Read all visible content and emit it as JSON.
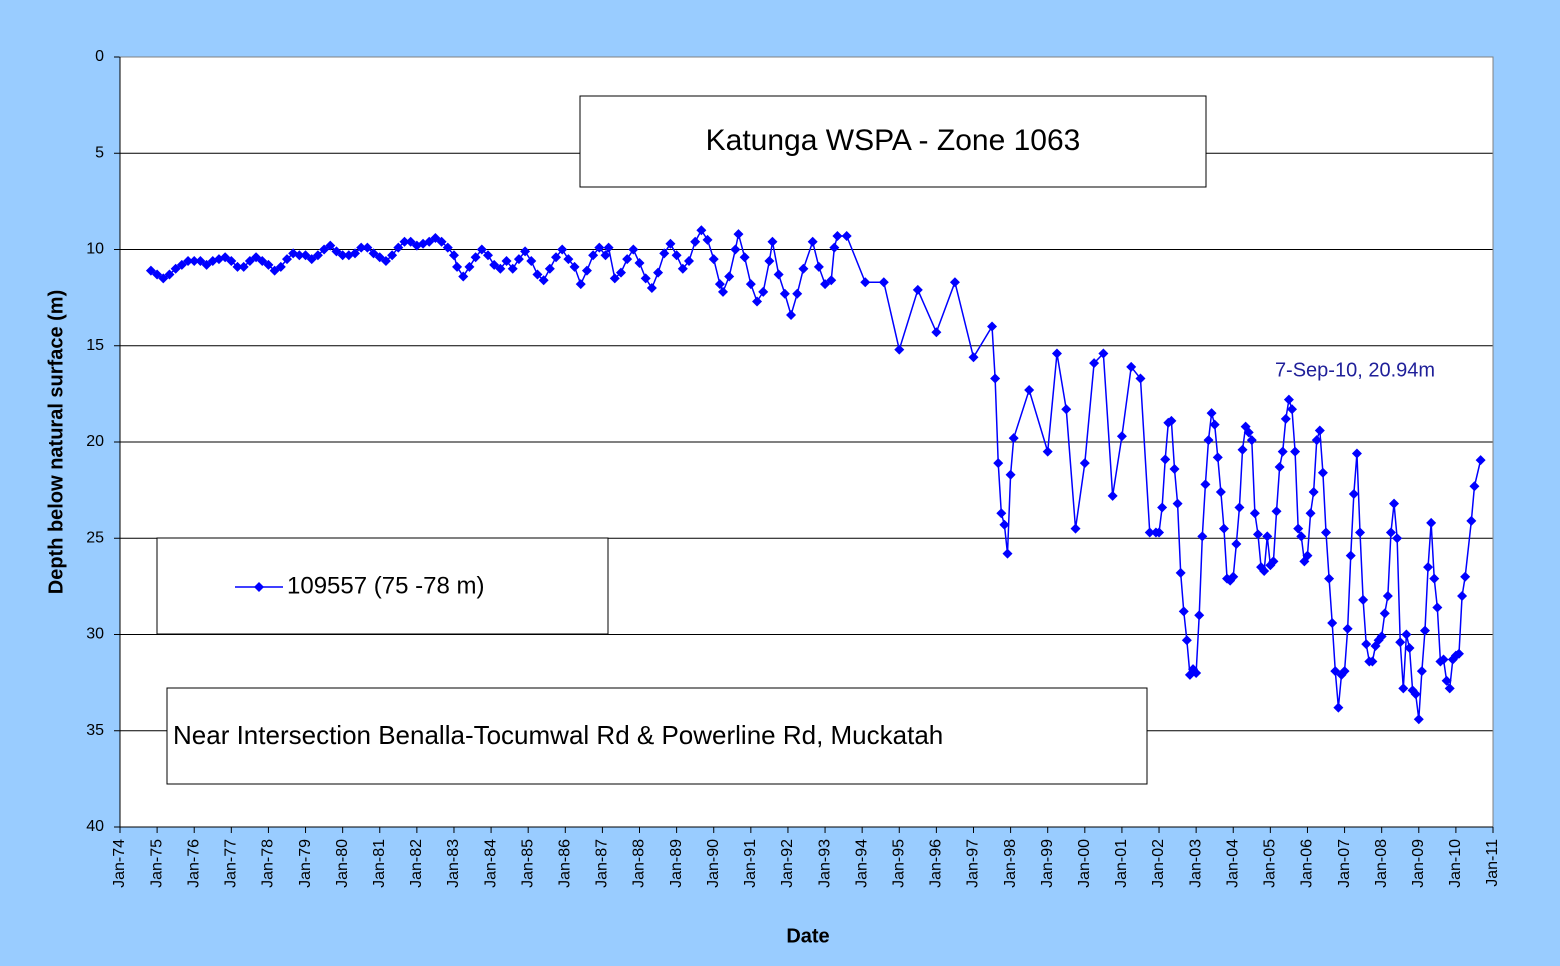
{
  "chart_data": {
    "type": "line",
    "title": "Katunga WSPA - Zone 1063",
    "subtitle": "Near Intersection Benalla-Tocumwal Rd & Powerline Rd, Muckatah",
    "annotation": "7-Sep-10, 20.94m",
    "x_label": "Date",
    "y_label": "Depth below natural surface (m)",
    "y_inverted": true,
    "grid": true,
    "ylim": [
      40,
      0
    ],
    "yticks": [
      0,
      5,
      10,
      15,
      20,
      25,
      30,
      35,
      40
    ],
    "xlim": [
      "1974-01",
      "2011-01"
    ],
    "xticks": [
      {
        "value": "1974-01",
        "label": "Jan-74"
      },
      {
        "value": "1975-01",
        "label": "Jan-75"
      },
      {
        "value": "1976-01",
        "label": "Jan-76"
      },
      {
        "value": "1977-01",
        "label": "Jan-77"
      },
      {
        "value": "1978-01",
        "label": "Jan-78"
      },
      {
        "value": "1979-01",
        "label": "Jan-79"
      },
      {
        "value": "1980-01",
        "label": "Jan-80"
      },
      {
        "value": "1981-01",
        "label": "Jan-81"
      },
      {
        "value": "1982-01",
        "label": "Jan-82"
      },
      {
        "value": "1983-01",
        "label": "Jan-83"
      },
      {
        "value": "1984-01",
        "label": "Jan-84"
      },
      {
        "value": "1985-01",
        "label": "Jan-85"
      },
      {
        "value": "1986-01",
        "label": "Jan-86"
      },
      {
        "value": "1987-01",
        "label": "Jan-87"
      },
      {
        "value": "1988-01",
        "label": "Jan-88"
      },
      {
        "value": "1989-01",
        "label": "Jan-89"
      },
      {
        "value": "1990-01",
        "label": "Jan-90"
      },
      {
        "value": "1991-01",
        "label": "Jan-91"
      },
      {
        "value": "1992-01",
        "label": "Jan-92"
      },
      {
        "value": "1993-01",
        "label": "Jan-93"
      },
      {
        "value": "1994-01",
        "label": "Jan-94"
      },
      {
        "value": "1995-01",
        "label": "Jan-95"
      },
      {
        "value": "1996-01",
        "label": "Jan-96"
      },
      {
        "value": "1997-01",
        "label": "Jan-97"
      },
      {
        "value": "1998-01",
        "label": "Jan-98"
      },
      {
        "value": "1999-01",
        "label": "Jan-99"
      },
      {
        "value": "2000-01",
        "label": "Jan-00"
      },
      {
        "value": "2001-01",
        "label": "Jan-01"
      },
      {
        "value": "2002-01",
        "label": "Jan-02"
      },
      {
        "value": "2003-01",
        "label": "Jan-03"
      },
      {
        "value": "2004-01",
        "label": "Jan-04"
      },
      {
        "value": "2005-01",
        "label": "Jan-05"
      },
      {
        "value": "2006-01",
        "label": "Jan-06"
      },
      {
        "value": "2007-01",
        "label": "Jan-07"
      },
      {
        "value": "2008-01",
        "label": "Jan-08"
      },
      {
        "value": "2009-01",
        "label": "Jan-09"
      },
      {
        "value": "2010-01",
        "label": "Jan-10"
      },
      {
        "value": "2011-01",
        "label": "Jan-11"
      }
    ],
    "x": [
      "1974-11",
      "1975-01",
      "1975-03",
      "1975-05",
      "1975-07",
      "1975-09",
      "1975-11",
      "1976-01",
      "1976-03",
      "1976-05",
      "1976-07",
      "1976-09",
      "1976-11",
      "1977-01",
      "1977-03",
      "1977-05",
      "1977-07",
      "1977-09",
      "1977-11",
      "1978-01",
      "1978-03",
      "1978-05",
      "1978-07",
      "1978-09",
      "1978-11",
      "1979-01",
      "1979-03",
      "1979-05",
      "1979-07",
      "1979-09",
      "1979-11",
      "1980-01",
      "1980-03",
      "1980-05",
      "1980-07",
      "1980-09",
      "1980-11",
      "1981-01",
      "1981-03",
      "1981-05",
      "1981-07",
      "1981-09",
      "1981-11",
      "1982-01",
      "1982-03",
      "1982-05",
      "1982-07",
      "1982-09",
      "1982-11",
      "1983-01",
      "1983-02",
      "1983-04",
      "1983-06",
      "1983-08",
      "1983-10",
      "1983-12",
      "1984-02",
      "1984-04",
      "1984-06",
      "1984-08",
      "1984-10",
      "1984-12",
      "1985-02",
      "1985-04",
      "1985-06",
      "1985-08",
      "1985-10",
      "1985-12",
      "1986-02",
      "1986-04",
      "1986-06",
      "1986-08",
      "1986-10",
      "1986-12",
      "1987-02",
      "1987-03",
      "1987-05",
      "1987-07",
      "1987-09",
      "1987-11",
      "1988-01",
      "1988-03",
      "1988-05",
      "1988-07",
      "1988-09",
      "1988-11",
      "1989-01",
      "1989-03",
      "1989-05",
      "1989-07",
      "1989-09",
      "1989-11",
      "1990-01",
      "1990-03",
      "1990-04",
      "1990-06",
      "1990-08",
      "1990-09",
      "1990-11",
      "1991-01",
      "1991-03",
      "1991-05",
      "1991-07",
      "1991-08",
      "1991-10",
      "1991-12",
      "1992-02",
      "1992-04",
      "1992-06",
      "1992-09",
      "1992-11",
      "1993-01",
      "1993-03",
      "1993-04",
      "1993-05",
      "1993-08",
      "1994-02",
      "1994-08",
      "1995-01",
      "1995-07",
      "1996-01",
      "1996-07",
      "1997-01",
      "1997-07",
      "1997-08",
      "1997-09",
      "1997-10",
      "1997-11",
      "1997-12",
      "1998-01",
      "1998-02",
      "1998-07",
      "1999-01",
      "1999-04",
      "1999-07",
      "1999-10",
      "2000-01",
      "2000-04",
      "2000-07",
      "2000-10",
      "2001-01",
      "2001-04",
      "2001-07",
      "2001-10",
      "2001-12",
      "2002-01",
      "2002-02",
      "2002-03",
      "2002-04",
      "2002-05",
      "2002-06",
      "2002-07",
      "2002-08",
      "2002-09",
      "2002-10",
      "2002-11",
      "2002-12",
      "2003-01",
      "2003-02",
      "2003-03",
      "2003-04",
      "2003-05",
      "2003-06",
      "2003-07",
      "2003-08",
      "2003-09",
      "2003-10",
      "2003-11",
      "2003-12",
      "2004-01",
      "2004-02",
      "2004-03",
      "2004-04",
      "2004-05",
      "2004-06",
      "2004-07",
      "2004-08",
      "2004-09",
      "2004-10",
      "2004-11",
      "2004-12",
      "2005-01",
      "2005-02",
      "2005-03",
      "2005-04",
      "2005-05",
      "2005-06",
      "2005-07",
      "2005-08",
      "2005-09",
      "2005-10",
      "2005-11",
      "2005-12",
      "2006-01",
      "2006-02",
      "2006-03",
      "2006-04",
      "2006-05",
      "2006-06",
      "2006-07",
      "2006-08",
      "2006-09",
      "2006-10",
      "2006-11",
      "2006-12",
      "2007-01",
      "2007-02",
      "2007-03",
      "2007-04",
      "2007-05",
      "2007-06",
      "2007-07",
      "2007-08",
      "2007-09",
      "2007-10",
      "2007-11",
      "2007-12",
      "2008-01",
      "2008-02",
      "2008-03",
      "2008-04",
      "2008-05",
      "2008-06",
      "2008-07",
      "2008-08",
      "2008-09",
      "2008-10",
      "2008-11",
      "2008-12",
      "2009-01",
      "2009-02",
      "2009-03",
      "2009-04",
      "2009-05",
      "2009-06",
      "2009-07",
      "2009-08",
      "2009-09",
      "2009-10",
      "2009-11",
      "2009-12",
      "2010-01",
      "2010-02",
      "2010-03",
      "2010-04",
      "2010-06",
      "2010-07",
      "2010-09"
    ],
    "series": [
      {
        "name": "109557 (75 -78 m)",
        "color": "#0000ff",
        "values": [
          11.1,
          11.3,
          11.5,
          11.3,
          11.0,
          10.8,
          10.6,
          10.6,
          10.6,
          10.8,
          10.6,
          10.5,
          10.4,
          10.6,
          10.9,
          10.9,
          10.6,
          10.4,
          10.6,
          10.8,
          11.1,
          10.9,
          10.5,
          10.2,
          10.3,
          10.3,
          10.5,
          10.3,
          10.0,
          9.8,
          10.1,
          10.3,
          10.3,
          10.2,
          9.9,
          9.9,
          10.2,
          10.4,
          10.6,
          10.3,
          9.9,
          9.6,
          9.6,
          9.8,
          9.7,
          9.6,
          9.4,
          9.6,
          9.9,
          10.3,
          10.9,
          11.4,
          10.9,
          10.4,
          10.0,
          10.3,
          10.8,
          11.0,
          10.6,
          11.0,
          10.5,
          10.1,
          10.6,
          11.3,
          11.6,
          11.0,
          10.4,
          10.0,
          10.5,
          10.9,
          11.8,
          11.1,
          10.3,
          9.9,
          10.3,
          9.9,
          11.5,
          11.2,
          10.5,
          10.0,
          10.7,
          11.5,
          12.0,
          11.2,
          10.2,
          9.7,
          10.3,
          11.0,
          10.6,
          9.6,
          9.0,
          9.5,
          10.5,
          11.8,
          12.2,
          11.4,
          10.0,
          9.2,
          10.4,
          11.8,
          12.7,
          12.2,
          10.6,
          9.6,
          11.3,
          12.3,
          13.4,
          12.3,
          11.0,
          9.6,
          10.9,
          11.8,
          11.6,
          9.9,
          9.3,
          9.3,
          11.7,
          11.7,
          15.2,
          12.1,
          14.3,
          11.7,
          15.6,
          14.0,
          16.7,
          21.1,
          23.7,
          24.3,
          25.8,
          21.7,
          19.8,
          17.3,
          20.5,
          15.4,
          18.3,
          24.5,
          21.1,
          15.9,
          15.4,
          22.8,
          19.7,
          16.1,
          16.7,
          24.7,
          24.7,
          24.7,
          23.4,
          20.9,
          19.0,
          18.9,
          21.4,
          23.2,
          26.8,
          28.8,
          30.3,
          32.1,
          31.8,
          32.0,
          29.0,
          24.9,
          22.2,
          19.9,
          18.5,
          19.1,
          20.8,
          22.6,
          24.5,
          27.1,
          27.2,
          27.0,
          25.3,
          23.4,
          20.4,
          19.2,
          19.5,
          19.9,
          23.7,
          24.8,
          26.5,
          26.7,
          24.9,
          26.4,
          26.2,
          23.6,
          21.3,
          20.5,
          18.8,
          17.8,
          18.3,
          20.5,
          24.5,
          24.9,
          26.2,
          25.9,
          23.7,
          22.6,
          19.9,
          19.4,
          21.6,
          24.7,
          27.1,
          29.4,
          31.9,
          33.8,
          32.1,
          31.9,
          29.7,
          25.9,
          22.7,
          20.6,
          24.7,
          28.2,
          30.5,
          31.4,
          31.4,
          30.6,
          30.3,
          30.1,
          28.9,
          28.0,
          24.7,
          23.2,
          25.0,
          30.4,
          32.8,
          30.0,
          30.7,
          32.9,
          33.1,
          34.4,
          31.9,
          29.8,
          26.5,
          24.2,
          27.1,
          28.6,
          31.4,
          31.3,
          32.4,
          32.8,
          31.3,
          31.1,
          31.0,
          28.0,
          27.0,
          24.1,
          22.3,
          20.94
        ]
      }
    ]
  }
}
